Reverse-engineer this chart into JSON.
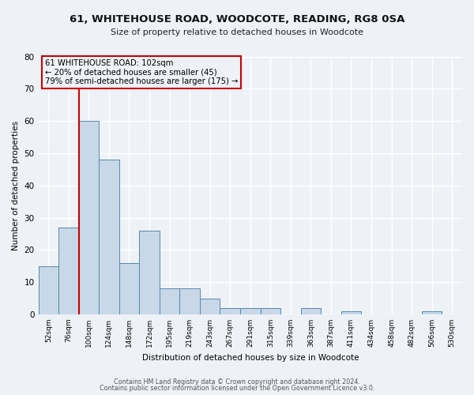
{
  "title": "61, WHITEHOUSE ROAD, WOODCOTE, READING, RG8 0SA",
  "subtitle": "Size of property relative to detached houses in Woodcote",
  "xlabel": "Distribution of detached houses by size in Woodcote",
  "ylabel": "Number of detached properties",
  "bin_labels": [
    "52sqm",
    "76sqm",
    "100sqm",
    "124sqm",
    "148sqm",
    "172sqm",
    "195sqm",
    "219sqm",
    "243sqm",
    "267sqm",
    "291sqm",
    "315sqm",
    "339sqm",
    "363sqm",
    "387sqm",
    "411sqm",
    "434sqm",
    "458sqm",
    "482sqm",
    "506sqm",
    "530sqm"
  ],
  "bar_values": [
    15,
    27,
    60,
    48,
    16,
    26,
    8,
    8,
    5,
    2,
    2,
    2,
    0,
    2,
    0,
    1,
    0,
    0,
    0,
    1,
    0
  ],
  "bar_color": "#c8d8e8",
  "bar_edge_color": "#5588aa",
  "vline_color": "#cc0000",
  "annotation_lines": [
    "61 WHITEHOUSE ROAD: 102sqm",
    "← 20% of detached houses are smaller (45)",
    "79% of semi-detached houses are larger (175) →"
  ],
  "annotation_box_color": "#cc0000",
  "ylim": [
    0,
    80
  ],
  "yticks": [
    0,
    10,
    20,
    30,
    40,
    50,
    60,
    70,
    80
  ],
  "footer_line1": "Contains HM Land Registry data © Crown copyright and database right 2024.",
  "footer_line2": "Contains public sector information licensed under the Open Government Licence v3.0.",
  "bg_color": "#eef2f7",
  "grid_color": "#d8e0ec",
  "figsize": [
    6.0,
    5.0
  ],
  "dpi": 100
}
